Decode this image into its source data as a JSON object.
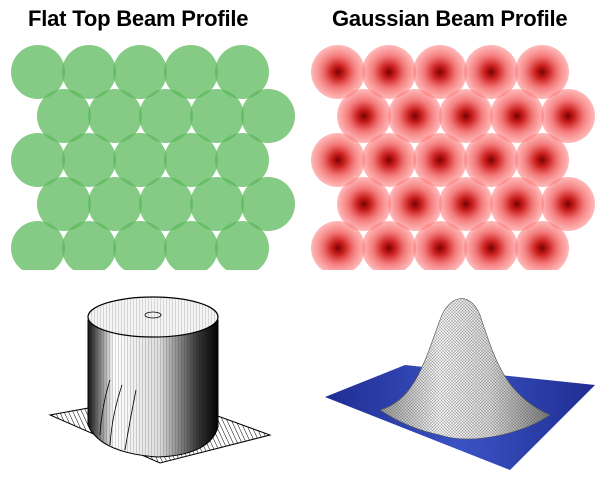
{
  "titles": {
    "flat_top": "Flat Top Beam Profile",
    "gaussian": "Gaussian Beam Profile"
  },
  "colors": {
    "flat_top_fill": "#5cb85c",
    "gaussian_center": "#8b0000",
    "gaussian_edge": "#ff6b6b",
    "gaussian_base": "#1f2fa0"
  },
  "layout_pattern": {
    "rows": 5,
    "columns": 5,
    "arrangement": "hexagonal overlapping circles"
  }
}
